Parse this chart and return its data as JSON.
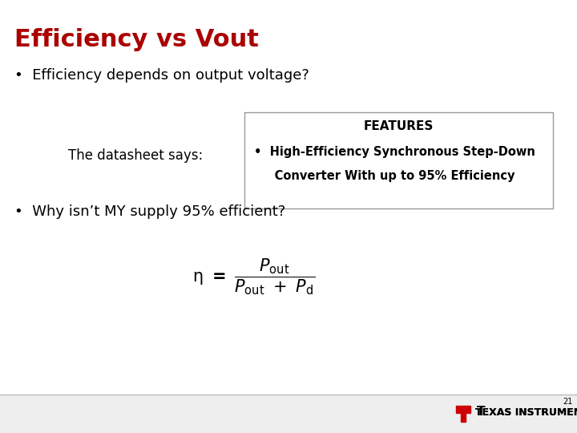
{
  "title": "Efficiency vs Vout",
  "title_color": "#aa0000",
  "title_fontsize": 22,
  "bullet1": "Efficiency depends on output voltage?",
  "bullet1_fontsize": 13,
  "datasheet_label": "The datasheet says:",
  "datasheet_label_fontsize": 12,
  "features_title": "FEATURES",
  "features_title_fontsize": 11,
  "features_text1": "•  High-Efficiency Synchronous Step-Down",
  "features_text2": "     Converter With up to 95% Efficiency",
  "features_fontsize": 10.5,
  "bullet2": "Why isn’t MY supply 95% efficient?",
  "bullet2_fontsize": 13,
  "page_number": "21",
  "bg_color": "#ffffff",
  "text_color": "#000000",
  "footer_bg": "#eeeeee",
  "ti_red": "#cc0000"
}
